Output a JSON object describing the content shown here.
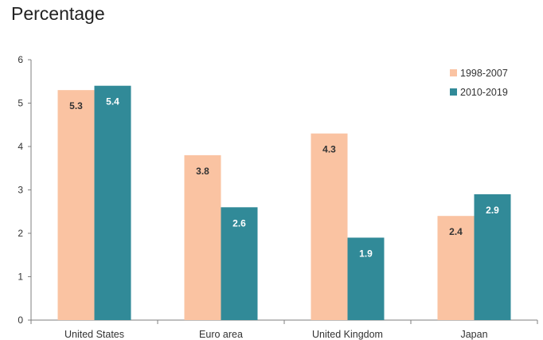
{
  "chart_data": {
    "type": "bar",
    "title": "Percentage",
    "categories": [
      "United States",
      "Euro area",
      "United Kingdom",
      "Japan"
    ],
    "series": [
      {
        "name": "1998-2007",
        "values": [
          5.3,
          3.8,
          4.3,
          2.4
        ],
        "color": "#FAC3A2"
      },
      {
        "name": "2010-2019",
        "values": [
          5.4,
          2.6,
          1.9,
          2.9
        ],
        "color": "#318A98"
      }
    ],
    "ylim": [
      0,
      6
    ],
    "yticks": [
      0,
      1,
      2,
      3,
      4,
      5,
      6
    ],
    "grid": false,
    "legend_position": "top-right",
    "data_label_colors": [
      "#333333",
      "#ffffff"
    ]
  }
}
